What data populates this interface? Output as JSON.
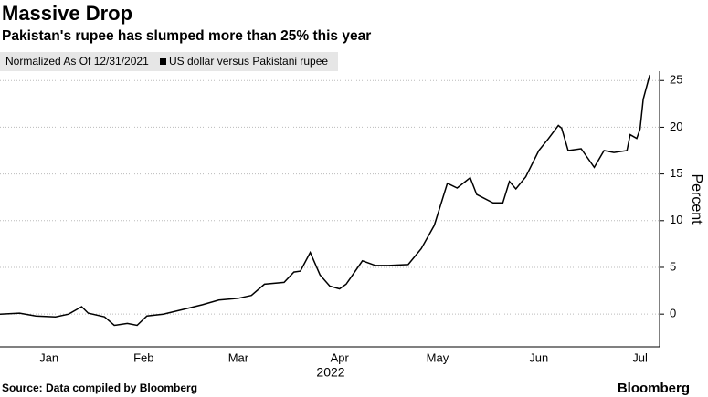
{
  "chart_data": {
    "type": "line",
    "title": "Massive Drop",
    "subtitle": "Pakistan's rupee has slumped more than 25% this year",
    "note": "Normalized As Of 12/31/2021",
    "x_label": "2022",
    "y_label": "Percent",
    "source": "Source: Data compiled by Bloomberg",
    "brand": "Bloomberg",
    "x": [
      0,
      6,
      11,
      17,
      21,
      25,
      27,
      32,
      35,
      39,
      42,
      45,
      50,
      56,
      62,
      67,
      73,
      77,
      81,
      87,
      90,
      92,
      95,
      98,
      101,
      104,
      106,
      111,
      115,
      119,
      125,
      129,
      133,
      137,
      140,
      144,
      146,
      151,
      154,
      156,
      158,
      161,
      165,
      168,
      171,
      172,
      174,
      178,
      182,
      185,
      188,
      192,
      193,
      195,
      196,
      197,
      199
    ],
    "series": [
      {
        "name": "US dollar versus Pakistani rupee",
        "color": "#000000",
        "values": [
          0,
          0.1,
          -0.2,
          -0.3,
          0,
          0.8,
          0.1,
          -0.3,
          -1.2,
          -1.0,
          -1.2,
          -0.2,
          0,
          0.5,
          1.0,
          1.5,
          1.7,
          2.0,
          3.2,
          3.4,
          4.5,
          4.6,
          6.6,
          4.2,
          3.0,
          2.7,
          3.2,
          5.7,
          5.2,
          5.2,
          5.3,
          7.0,
          9.5,
          14.0,
          13.5,
          14.6,
          12.8,
          11.9,
          11.9,
          14.2,
          13.4,
          14.7,
          17.5,
          18.8,
          20.2,
          19.9,
          17.5,
          17.7,
          15.7,
          17.5,
          17.3,
          17.5,
          19.2,
          18.8,
          19.8,
          23.0,
          25.6
        ]
      }
    ],
    "xlim": [
      0,
      202
    ],
    "xticks": [
      {
        "value": 15,
        "label": "Jan"
      },
      {
        "value": 44,
        "label": "Feb"
      },
      {
        "value": 73,
        "label": "Mar"
      },
      {
        "value": 104,
        "label": "Apr"
      },
      {
        "value": 134,
        "label": "May"
      },
      {
        "value": 165,
        "label": "Jun"
      },
      {
        "value": 196,
        "label": "Jul"
      }
    ],
    "ylim": [
      -3.5,
      26
    ],
    "yticks": [
      0,
      5,
      10,
      15,
      20,
      25
    ],
    "grid": true
  }
}
